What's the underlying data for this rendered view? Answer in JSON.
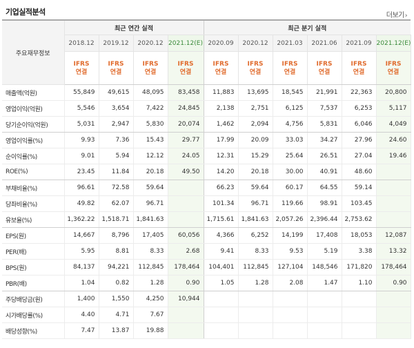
{
  "header": {
    "title": "기업실적분석",
    "more_label": "더보기"
  },
  "table": {
    "row_label_header": "주요재무정보",
    "annual_group": "최근 연간 실적",
    "quarter_group": "최근 분기 실적",
    "annual_periods": [
      "2018.12",
      "2019.12",
      "2020.12",
      "2021.12(E)"
    ],
    "quarter_periods": [
      "2020.09",
      "2020.12",
      "2021.03",
      "2021.06",
      "2021.09",
      "2021.12(E)"
    ],
    "standard_line1": "IFRS",
    "standard_line2": "연결",
    "rows": [
      {
        "label": "매출액(억원)",
        "annual": [
          "55,849",
          "49,615",
          "48,095",
          "83,458"
        ],
        "quarter": [
          "11,883",
          "13,695",
          "18,545",
          "21,991",
          "22,363",
          "20,800"
        ]
      },
      {
        "label": "영업이익(억원)",
        "annual": [
          "5,546",
          "3,654",
          "7,422",
          "24,845"
        ],
        "quarter": [
          "2,138",
          "2,751",
          "6,125",
          "7,537",
          "6,253",
          "5,117"
        ]
      },
      {
        "label": "당기순이익(억원)",
        "annual": [
          "5,031",
          "2,947",
          "5,830",
          "20,074"
        ],
        "quarter": [
          "1,462",
          "2,094",
          "4,756",
          "5,831",
          "6,046",
          "4,049"
        ]
      },
      {
        "label": "영업이익률(%)",
        "annual": [
          "9.93",
          "7.36",
          "15.43",
          "29.77"
        ],
        "quarter": [
          "17.99",
          "20.09",
          "33.03",
          "34.27",
          "27.96",
          "24.60"
        ]
      },
      {
        "label": "순이익률(%)",
        "annual": [
          "9.01",
          "5.94",
          "12.12",
          "24.05"
        ],
        "quarter": [
          "12.31",
          "15.29",
          "25.64",
          "26.51",
          "27.04",
          "19.46"
        ]
      },
      {
        "label": "ROE(%)",
        "annual": [
          "23.45",
          "11.84",
          "20.18",
          "49.50"
        ],
        "quarter": [
          "14.20",
          "20.18",
          "30.00",
          "40.91",
          "48.60",
          ""
        ]
      },
      {
        "label": "부채비율(%)",
        "annual": [
          "96.61",
          "72.58",
          "59.64",
          ""
        ],
        "quarter": [
          "66.23",
          "59.64",
          "60.17",
          "64.55",
          "59.14",
          ""
        ]
      },
      {
        "label": "당좌비율(%)",
        "annual": [
          "49.82",
          "62.07",
          "96.71",
          ""
        ],
        "quarter": [
          "101.34",
          "96.71",
          "119.66",
          "98.91",
          "103.45",
          ""
        ]
      },
      {
        "label": "유보율(%)",
        "annual": [
          "1,362.22",
          "1,518.71",
          "1,841.63",
          ""
        ],
        "quarter": [
          "1,715.61",
          "1,841.63",
          "2,057.26",
          "2,396.44",
          "2,753.62",
          ""
        ]
      },
      {
        "label": "EPS(원)",
        "annual": [
          "14,667",
          "8,796",
          "17,405",
          "60,056"
        ],
        "quarter": [
          "4,366",
          "6,252",
          "14,199",
          "17,408",
          "18,053",
          "12,087"
        ]
      },
      {
        "label": "PER(배)",
        "annual": [
          "5.95",
          "8.81",
          "8.33",
          "2.68"
        ],
        "quarter": [
          "9.41",
          "8.33",
          "9.53",
          "5.19",
          "3.38",
          "13.32"
        ]
      },
      {
        "label": "BPS(원)",
        "annual": [
          "84,137",
          "94,221",
          "112,845",
          "178,464"
        ],
        "quarter": [
          "104,401",
          "112,845",
          "127,104",
          "148,546",
          "171,820",
          "178,464"
        ]
      },
      {
        "label": "PBR(배)",
        "annual": [
          "1.04",
          "0.82",
          "1.28",
          "0.90"
        ],
        "quarter": [
          "1.05",
          "1.28",
          "2.08",
          "1.47",
          "1.10",
          "0.90"
        ]
      },
      {
        "label": "주당배당금(원)",
        "annual": [
          "1,400",
          "1,550",
          "4,250",
          "10,944"
        ],
        "quarter": [
          "",
          "",
          "",
          "",
          "",
          ""
        ]
      },
      {
        "label": "시가배당률(%)",
        "annual": [
          "4.40",
          "4.71",
          "7.67",
          ""
        ],
        "quarter": [
          "",
          "",
          "",
          "",
          "",
          ""
        ]
      },
      {
        "label": "배당성향(%)",
        "annual": [
          "7.47",
          "13.87",
          "19.88",
          ""
        ],
        "quarter": [
          "",
          "",
          "",
          "",
          "",
          ""
        ]
      }
    ]
  },
  "colors": {
    "accent_orange": "#e06b2d",
    "estimate_green_bg": "#f3f9ef"
  }
}
